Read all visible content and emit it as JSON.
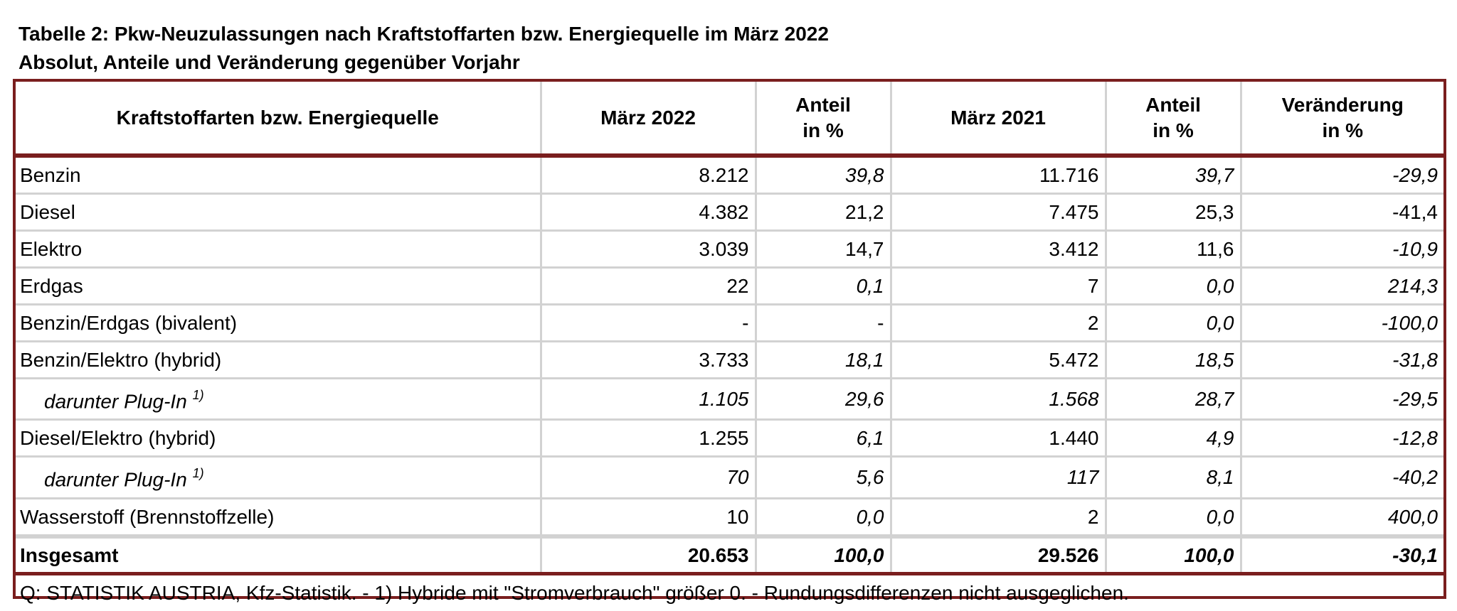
{
  "title": "Tabelle 2: Pkw-Neuzulassungen nach Kraftstoffarten bzw. Energiequelle im März 2022",
  "subtitle": "Absolut, Anteile und Veränderung gegenüber Vorjahr",
  "table": {
    "headers": [
      {
        "line1": "Kraftstoffarten bzw. Energiequelle",
        "line2": ""
      },
      {
        "line1": "März 2022",
        "line2": ""
      },
      {
        "line1": "Anteil",
        "line2": "in %"
      },
      {
        "line1": "März 2021",
        "line2": ""
      },
      {
        "line1": "Anteil",
        "line2": "in %"
      },
      {
        "line1": "Veränderung",
        "line2": "in %"
      }
    ],
    "rows": [
      {
        "label": "Benzin",
        "sup": "",
        "m2022": "8.212",
        "share2022": "39,8",
        "m2021": "11.716",
        "share2021": "39,7",
        "change": "-29,9"
      },
      {
        "label": "Diesel",
        "sup": "",
        "m2022": "4.382",
        "share2022": "21,2",
        "m2021": "7.475",
        "share2021": "25,3",
        "change": "-41,4"
      },
      {
        "label": "Elektro",
        "sup": "",
        "m2022": "3.039",
        "share2022": "14,7",
        "m2021": "3.412",
        "share2021": "11,6",
        "change": "-10,9"
      },
      {
        "label": "Erdgas",
        "sup": "",
        "m2022": "22",
        "share2022": "0,1",
        "m2021": "7",
        "share2021": "0,0",
        "change": "214,3"
      },
      {
        "label": "Benzin/Erdgas (bivalent)",
        "sup": "",
        "m2022": "-",
        "share2022": "-",
        "m2021": "2",
        "share2021": "0,0",
        "change": "-100,0"
      },
      {
        "label": "Benzin/Elektro (hybrid)",
        "sup": "",
        "m2022": "3.733",
        "share2022": "18,1",
        "m2021": "5.472",
        "share2021": "18,5",
        "change": "-31,8"
      },
      {
        "label": "darunter Plug-In",
        "sup": "1)",
        "m2022": "1.105",
        "share2022": "29,6",
        "m2021": "1.568",
        "share2021": "28,7",
        "change": "-29,5"
      },
      {
        "label": "Diesel/Elektro (hybrid)",
        "sup": "",
        "m2022": "1.255",
        "share2022": "6,1",
        "m2021": "1.440",
        "share2021": "4,9",
        "change": "-12,8"
      },
      {
        "label": "darunter Plug-In",
        "sup": "1)",
        "m2022": "70",
        "share2022": "5,6",
        "m2021": "117",
        "share2021": "8,1",
        "change": "-40,2"
      },
      {
        "label": "Wasserstoff (Brennstoffzelle)",
        "sup": "",
        "m2022": "10",
        "share2022": "0,0",
        "m2021": "2",
        "share2021": "0,0",
        "change": "400,0"
      }
    ],
    "total": {
      "label": "Insgesamt",
      "m2022": "20.653",
      "share2022": "100,0",
      "m2021": "29.526",
      "share2021": "100,0",
      "change": "-30,1"
    },
    "footnote": "Q: STATISTIK AUSTRIA, Kfz-Statistik. - 1) Hybride mit  \"Stromverbrauch\" größer 0. - Rundungsdifferenzen nicht ausgeglichen."
  },
  "colors": {
    "frame": "#7a1e1e",
    "grid": "#d2d2d2"
  }
}
